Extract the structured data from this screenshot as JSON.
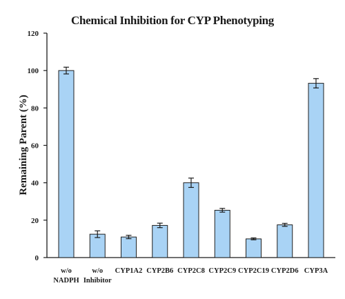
{
  "chart_data": {
    "type": "bar",
    "title": "Chemical Inhibition for CYP Phenotyping",
    "xlabel": "",
    "ylabel": "Remaining Parent (%)",
    "ylim": [
      0,
      120
    ],
    "yticks": [
      0,
      20,
      40,
      60,
      80,
      100,
      120
    ],
    "categories": [
      [
        "w/o",
        "NADPH"
      ],
      [
        "w/o",
        "Inhibitor"
      ],
      [
        "CYP1A2"
      ],
      [
        "CYP2B6"
      ],
      [
        "CYP2C8"
      ],
      [
        "CYP2C9"
      ],
      [
        "CYP2C19"
      ],
      [
        "CYP2D6"
      ],
      [
        "CYP3A"
      ]
    ],
    "values": [
      100,
      12.5,
      11,
      17.2,
      40,
      25.3,
      10,
      17.5,
      93.2
    ],
    "errors": [
      1.8,
      1.8,
      0.9,
      1.2,
      2.5,
      1.0,
      0.5,
      0.8,
      2.5
    ],
    "grid": false,
    "legend": "none",
    "bar_color": "#A9D3F5",
    "bar_edge_color": "#1f1f1f",
    "error_bar_color": "#1a1a1a"
  }
}
